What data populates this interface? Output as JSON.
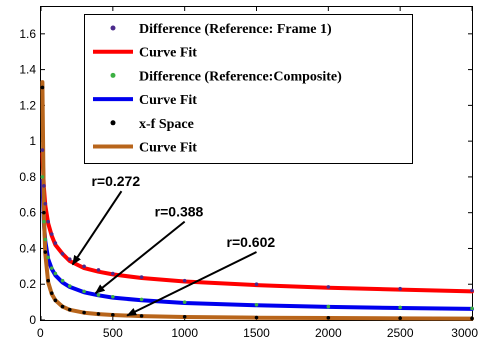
{
  "chart_data": {
    "type": "line",
    "title": "",
    "xlabel": "",
    "ylabel": "",
    "xlim": [
      0,
      3000
    ],
    "ylim": [
      0,
      1.75
    ],
    "xticks": [
      0,
      500,
      1000,
      1500,
      2000,
      2500,
      3000
    ],
    "yticks": [
      0,
      0.2,
      0.4,
      0.6,
      0.8,
      1,
      1.2,
      1.4,
      1.6
    ],
    "xtick_labels": [
      "0",
      "500",
      "1000",
      "1500",
      "2000",
      "2500",
      "3000"
    ],
    "ytick_labels": [
      "0",
      "0.2",
      "0.4",
      "0.6",
      "0.8",
      "1",
      "1.2",
      "1.4",
      "1.6"
    ],
    "grid": false,
    "legend_position": "top-right",
    "series": [
      {
        "name": "Difference (Reference: Frame 1)",
        "style": "markers",
        "color": "#4b2a8c",
        "x": [
          10,
          20,
          30,
          50,
          75,
          100,
          150,
          200,
          300,
          400,
          500,
          700,
          1000,
          1500,
          2000,
          2500,
          3000
        ],
        "y": [
          0.95,
          0.75,
          0.65,
          0.55,
          0.48,
          0.43,
          0.37,
          0.34,
          0.3,
          0.28,
          0.26,
          0.24,
          0.22,
          0.2,
          0.185,
          0.175,
          0.165
        ]
      },
      {
        "name": "Curve Fit",
        "style": "line",
        "color": "#ff0000",
        "x": [
          10,
          20,
          30,
          50,
          75,
          100,
          150,
          200,
          300,
          400,
          500,
          700,
          1000,
          1500,
          2000,
          2500,
          3000
        ],
        "y": [
          0.93,
          0.74,
          0.64,
          0.54,
          0.47,
          0.42,
          0.37,
          0.33,
          0.29,
          0.27,
          0.255,
          0.235,
          0.215,
          0.195,
          0.18,
          0.17,
          0.16
        ]
      },
      {
        "name": "Difference (Reference:Composite)",
        "style": "markers",
        "color": "#3cb043",
        "x": [
          10,
          20,
          30,
          50,
          75,
          100,
          150,
          200,
          300,
          400,
          500,
          700,
          1000,
          1500,
          2000,
          2500,
          3000
        ],
        "y": [
          0.8,
          0.55,
          0.45,
          0.35,
          0.29,
          0.26,
          0.22,
          0.19,
          0.16,
          0.14,
          0.13,
          0.115,
          0.1,
          0.085,
          0.075,
          0.07,
          0.065
        ]
      },
      {
        "name": "Curve Fit",
        "style": "line",
        "color": "#0000ee",
        "x": [
          10,
          20,
          30,
          50,
          75,
          100,
          150,
          200,
          300,
          400,
          500,
          700,
          1000,
          1500,
          2000,
          2500,
          3000
        ],
        "y": [
          0.78,
          0.54,
          0.44,
          0.34,
          0.285,
          0.25,
          0.21,
          0.185,
          0.155,
          0.138,
          0.125,
          0.11,
          0.095,
          0.082,
          0.073,
          0.067,
          0.062
        ]
      },
      {
        "name": "x-f Space",
        "style": "markers",
        "color": "#000000",
        "x": [
          10,
          20,
          30,
          50,
          75,
          100,
          150,
          200,
          300,
          400,
          500,
          700,
          1000,
          1500,
          2000,
          2500,
          3000
        ],
        "y": [
          1.3,
          0.6,
          0.38,
          0.22,
          0.15,
          0.11,
          0.075,
          0.058,
          0.042,
          0.034,
          0.029,
          0.023,
          0.018,
          0.014,
          0.012,
          0.01,
          0.009
        ]
      },
      {
        "name": "Curve Fit",
        "style": "line",
        "color": "#b8651b",
        "x": [
          10,
          20,
          30,
          50,
          75,
          100,
          150,
          200,
          300,
          400,
          500,
          700,
          1000,
          1500,
          2000,
          2500,
          3000
        ],
        "y": [
          1.33,
          0.58,
          0.37,
          0.21,
          0.145,
          0.11,
          0.075,
          0.057,
          0.041,
          0.033,
          0.028,
          0.022,
          0.017,
          0.013,
          0.011,
          0.009,
          0.008
        ]
      }
    ],
    "annotations": [
      {
        "text": "r=0.272",
        "tail": [
          560,
          0.72
        ],
        "head": [
          220,
          0.31
        ]
      },
      {
        "text": "r=0.388",
        "tail": [
          1000,
          0.55
        ],
        "head": [
          380,
          0.15
        ]
      },
      {
        "text": "r=0.602",
        "tail": [
          1500,
          0.38
        ],
        "head": [
          600,
          0.025
        ]
      }
    ]
  }
}
